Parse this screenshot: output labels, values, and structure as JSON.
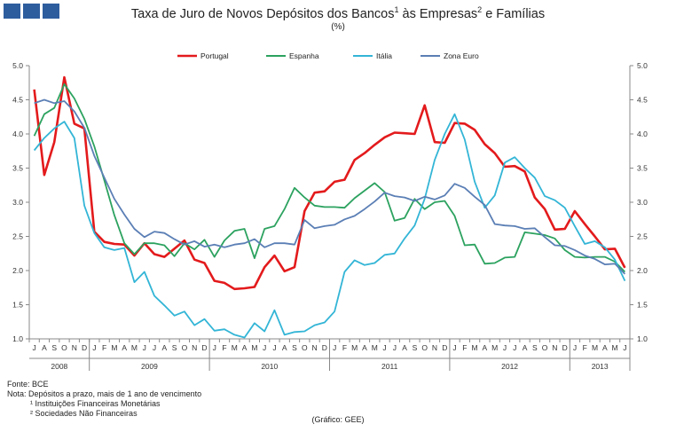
{
  "header": {
    "title_main": "Taxa de Juro de Novos Depósitos dos Bancos",
    "title_sup1": "1",
    "title_mid": " às Empresas",
    "title_sup2": "2",
    "title_end": " e Famílias",
    "subtitle": "(%)"
  },
  "footer": {
    "source": "Fonte: BCE",
    "note": "Nota: Depósitos a prazo, mais de 1 ano de vencimento",
    "note1": "¹ Instituições Financeiras Monetárias",
    "note2": "² Sociedades Não Financeiras",
    "credit": "(Gráfico: GEE)"
  },
  "chart_data": {
    "type": "line",
    "title": "Taxa de Juro de Novos Depósitos dos Bancos¹ às Empresas² e Famílias",
    "subtitle": "(%)",
    "ylim": [
      1.0,
      5.0
    ],
    "y_ticks": [
      "1.0",
      "1.5",
      "2.0",
      "2.5",
      "3.0",
      "3.5",
      "4.0",
      "4.5",
      "5.0"
    ],
    "y_tick_values": [
      1.0,
      1.5,
      2.0,
      2.5,
      3.0,
      3.5,
      4.0,
      4.5,
      5.0
    ],
    "dual_y_axis": true,
    "grid": false,
    "legend_position": "top",
    "month_labels": [
      "J",
      "A",
      "S",
      "O",
      "N",
      "D",
      "J",
      "F",
      "M",
      "A",
      "M",
      "J",
      "J",
      "A",
      "S",
      "O",
      "N",
      "D",
      "J",
      "F",
      "M",
      "A",
      "M",
      "J",
      "J",
      "A",
      "S",
      "O",
      "N",
      "D",
      "J",
      "F",
      "M",
      "A",
      "M",
      "J",
      "J",
      "A",
      "S",
      "O",
      "N",
      "D",
      "J",
      "F",
      "M",
      "A",
      "M",
      "J",
      "J",
      "A",
      "S",
      "O",
      "N",
      "D",
      "J",
      "F",
      "M",
      "A",
      "M",
      "J"
    ],
    "years": [
      {
        "label": "2008",
        "start": 0,
        "end": 6
      },
      {
        "label": "2009",
        "start": 6,
        "end": 18
      },
      {
        "label": "2010",
        "start": 18,
        "end": 30
      },
      {
        "label": "2011",
        "start": 30,
        "end": 42
      },
      {
        "label": "2012",
        "start": 42,
        "end": 54
      },
      {
        "label": "2013",
        "start": 54,
        "end": 60
      }
    ],
    "x_range": [
      "2008-07",
      "2013-06"
    ],
    "series": [
      {
        "name": "Portugal",
        "color": "#e31a1c",
        "values": [
          4.65,
          3.4,
          3.88,
          4.83,
          4.15,
          4.08,
          2.57,
          2.42,
          2.39,
          2.38,
          2.22,
          2.4,
          2.24,
          2.2,
          2.32,
          2.44,
          2.16,
          2.11,
          1.85,
          1.82,
          1.73,
          1.74,
          1.76,
          2.05,
          2.22,
          1.99,
          2.05,
          2.87,
          3.14,
          3.16,
          3.3,
          3.33,
          3.62,
          3.72,
          3.84,
          3.95,
          4.02,
          4.01,
          4.0,
          4.42,
          3.88,
          3.87,
          4.16,
          4.15,
          4.06,
          3.85,
          3.72,
          3.52,
          3.53,
          3.45,
          3.07,
          2.9,
          2.6,
          2.61,
          2.87,
          2.68,
          2.5,
          2.31,
          2.32,
          2.04
        ]
      },
      {
        "name": "Espanha",
        "color": "#2ca25f",
        "values": [
          3.97,
          4.29,
          4.38,
          4.73,
          4.52,
          4.22,
          3.82,
          3.32,
          2.81,
          2.4,
          2.24,
          2.4,
          2.4,
          2.37,
          2.21,
          2.4,
          2.31,
          2.45,
          2.2,
          2.44,
          2.58,
          2.61,
          2.18,
          2.61,
          2.65,
          2.9,
          3.21,
          3.07,
          2.95,
          2.93,
          2.93,
          2.92,
          3.06,
          3.17,
          3.28,
          3.15,
          2.73,
          2.77,
          3.05,
          2.9,
          3.0,
          3.02,
          2.8,
          2.37,
          2.38,
          2.1,
          2.11,
          2.19,
          2.2,
          2.56,
          2.54,
          2.52,
          2.47,
          2.3,
          2.2,
          2.19,
          2.2,
          2.2,
          2.13,
          1.98
        ]
      },
      {
        "name": "Itália",
        "color": "#33b5d6",
        "values": [
          3.76,
          3.94,
          4.08,
          4.18,
          3.94,
          2.95,
          2.55,
          2.34,
          2.3,
          2.33,
          1.83,
          1.98,
          1.63,
          1.49,
          1.34,
          1.4,
          1.2,
          1.29,
          1.12,
          1.14,
          1.06,
          1.02,
          1.23,
          1.11,
          1.42,
          1.06,
          1.1,
          1.11,
          1.2,
          1.24,
          1.4,
          1.98,
          2.15,
          2.08,
          2.11,
          2.23,
          2.25,
          2.47,
          2.66,
          3.05,
          3.62,
          4.0,
          4.29,
          3.92,
          3.3,
          2.92,
          3.1,
          3.58,
          3.66,
          3.5,
          3.36,
          3.09,
          3.03,
          2.92,
          2.65,
          2.39,
          2.43,
          2.34,
          2.16,
          1.85
        ]
      },
      {
        "name": "Zona Euro",
        "color": "#5b7fb5",
        "values": [
          4.45,
          4.5,
          4.45,
          4.48,
          4.33,
          4.09,
          3.68,
          3.36,
          3.05,
          2.82,
          2.61,
          2.49,
          2.57,
          2.55,
          2.46,
          2.38,
          2.43,
          2.35,
          2.38,
          2.34,
          2.38,
          2.4,
          2.46,
          2.34,
          2.4,
          2.4,
          2.38,
          2.74,
          2.62,
          2.65,
          2.67,
          2.75,
          2.8,
          2.9,
          3.01,
          3.14,
          3.09,
          3.07,
          3.02,
          3.08,
          3.04,
          3.1,
          3.27,
          3.21,
          3.08,
          2.96,
          2.68,
          2.66,
          2.65,
          2.61,
          2.62,
          2.49,
          2.37,
          2.36,
          2.3,
          2.22,
          2.17,
          2.09,
          2.1,
          1.95
        ]
      }
    ]
  }
}
